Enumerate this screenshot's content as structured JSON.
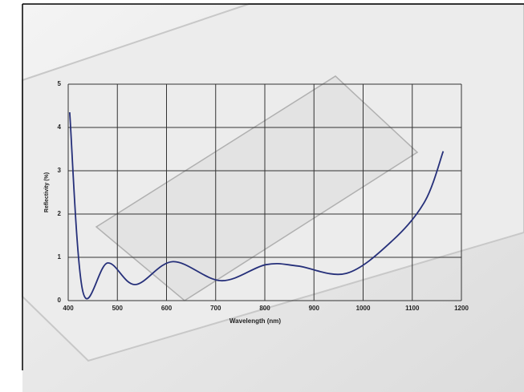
{
  "chart_data": {
    "type": "line",
    "x_label": "Wavelength (nm)",
    "y_label": "Reflectivity (%)",
    "x": [
      403,
      430,
      480,
      536,
      613,
      711,
      802,
      867,
      966,
      1061,
      1126,
      1163
    ],
    "series": [
      {
        "color": "#26307a",
        "values": [
          4.35,
          0.2,
          0.87,
          0.37,
          0.9,
          0.46,
          0.83,
          0.8,
          0.63,
          1.4,
          2.3,
          3.45
        ]
      }
    ],
    "xlim": [
      400,
      1200
    ],
    "xticks": [
      400,
      500,
      600,
      700,
      800,
      900,
      1000,
      1100,
      1200
    ],
    "ylim": [
      0,
      5
    ],
    "yticks": [
      0,
      1,
      2,
      3,
      4,
      5
    ],
    "grid": true
  }
}
